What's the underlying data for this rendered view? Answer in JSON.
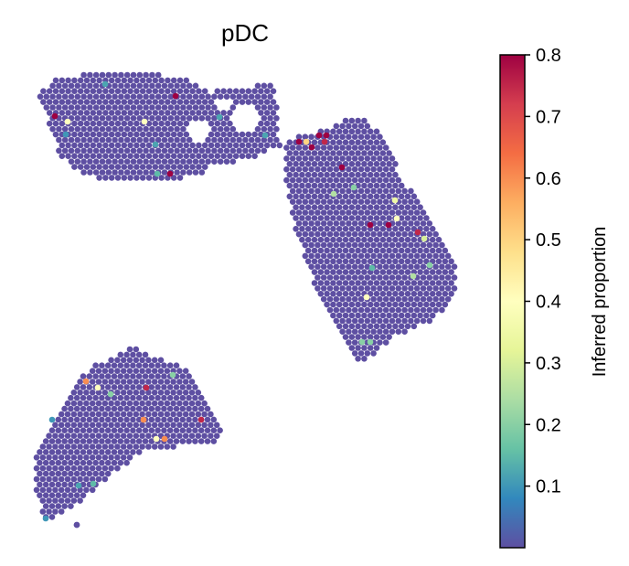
{
  "chart_data": {
    "type": "scatter",
    "title": "pDC",
    "xlabel": "",
    "ylabel": "",
    "axes_visible": false,
    "grid": false,
    "colormap": "Spectral_r",
    "background_color": "#5e4fa2",
    "colorbar": {
      "label": "Inferred proportion",
      "range": [
        0.0,
        0.8
      ],
      "ticks": [
        0.1,
        0.2,
        0.3,
        0.4,
        0.5,
        0.6,
        0.7,
        0.8
      ],
      "tick_labels": [
        "0.1",
        "0.2",
        "0.3",
        "0.4",
        "0.5",
        "0.6",
        "0.7",
        "0.8"
      ],
      "placement": "right"
    },
    "sections": [
      {
        "name": "top-left",
        "rows": [
          [
            84,
            152,
            0
          ],
          [
            50,
            290,
            1
          ],
          [
            44,
            300,
            2
          ],
          [
            44,
            306,
            3
          ],
          [
            50,
            300,
            4
          ],
          [
            57,
            300,
            5
          ],
          [
            63,
            300,
            6
          ],
          [
            63,
            240,
            7
          ],
          [
            63,
            230,
            8
          ],
          [
            70,
            235,
            9
          ],
          [
            70,
            230,
            10
          ],
          [
            77,
            225,
            11
          ],
          [
            84,
            225,
            12
          ],
          [
            91,
            220,
            13
          ],
          [
            98,
            220,
            14
          ],
          [
            112,
            200,
            15
          ],
          [
            118,
            190,
            16
          ]
        ],
        "holes": [
          [
            248,
            124,
            18
          ],
          [
            214,
            142,
            12
          ]
        ],
        "highlights": [
          [
            192,
            105,
            0.8
          ],
          [
            60,
            127,
            0.8
          ],
          [
            74,
            133,
            0.4
          ],
          [
            158,
            133,
            0.4
          ],
          [
            186,
            190,
            0.8
          ],
          [
            172,
            190,
            0.15
          ],
          [
            115,
            92,
            0.12
          ],
          [
            72,
            147,
            0.1
          ],
          [
            290,
            148,
            0.12
          ],
          [
            240,
            128,
            0.12
          ],
          [
            170,
            158,
            0.12
          ]
        ]
      },
      {
        "name": "right",
        "rows": [
          [
            129,
            372,
            0
          ],
          [
            136,
            358,
            1
          ],
          [
            143,
            343,
            2
          ],
          [
            150,
            330,
            3
          ],
          [
            157,
            316,
            4
          ],
          [
            164,
            308,
            5
          ],
          [
            171,
            308,
            6
          ],
          [
            178,
            310,
            7
          ],
          [
            185,
            312,
            8
          ],
          [
            192,
            314,
            9
          ],
          [
            199,
            316,
            10
          ],
          [
            206,
            318,
            11
          ],
          [
            213,
            320,
            12
          ],
          [
            220,
            322,
            13
          ],
          [
            227,
            322,
            14
          ],
          [
            234,
            322,
            15
          ],
          [
            241,
            322,
            16
          ],
          [
            248,
            322,
            17
          ],
          [
            255,
            324,
            18
          ],
          [
            262,
            326,
            19
          ],
          [
            269,
            328,
            20
          ],
          [
            276,
            330,
            21
          ],
          [
            283,
            332,
            22
          ],
          [
            290,
            334,
            23
          ],
          [
            297,
            338,
            24
          ],
          [
            304,
            342,
            25
          ],
          [
            311,
            346,
            26
          ],
          [
            318,
            350,
            27
          ],
          [
            325,
            354,
            28
          ],
          [
            332,
            358,
            29
          ],
          [
            339,
            364,
            30
          ],
          [
            346,
            370,
            31
          ],
          [
            353,
            376,
            32
          ],
          [
            360,
            382,
            33
          ],
          [
            367,
            386,
            34
          ],
          [
            374,
            390,
            35
          ],
          [
            381,
            394,
            36
          ],
          [
            388,
            398,
            37
          ],
          [
            395,
            400,
            38
          ]
        ],
        "clip": {
          "top": 129,
          "bottom": 396,
          "right_line": [
            [
              396,
              129
            ],
            [
              440,
              198
            ],
            [
              500,
              290
            ],
            [
              470,
              350
            ],
            [
              404,
              385
            ]
          ]
        },
        "highlights": [
          [
            327,
            155,
            0.8
          ],
          [
            341,
            161,
            0.8
          ],
          [
            349,
            148,
            0.8
          ],
          [
            357,
            148,
            0.8
          ],
          [
            355,
            155,
            0.75
          ],
          [
            335,
            155,
            0.5
          ],
          [
            374,
            183,
            0.8
          ],
          [
            405,
            246,
            0.8
          ],
          [
            425,
            246,
            0.8
          ],
          [
            434,
            239,
            0.4
          ],
          [
            457,
            254,
            0.75
          ],
          [
            464,
            261,
            0.3
          ],
          [
            470,
            290,
            0.2
          ],
          [
            452,
            302,
            0.25
          ],
          [
            387,
            205,
            0.2
          ],
          [
            365,
            212,
            0.25
          ],
          [
            401,
            325,
            0.4
          ],
          [
            396,
            374,
            0.2
          ],
          [
            405,
            374,
            0.2
          ],
          [
            432,
            219,
            0.35
          ],
          [
            407,
            293,
            0.15
          ]
        ]
      },
      {
        "name": "bottom-left",
        "rows": [
          [
            382,
            143,
            0
          ],
          [
            389,
            130,
            1
          ],
          [
            396,
            115,
            2
          ],
          [
            403,
            105,
            3
          ],
          [
            410,
            95,
            4
          ],
          [
            417,
            88,
            5
          ],
          [
            424,
            82,
            6
          ],
          [
            431,
            75,
            7
          ],
          [
            438,
            70,
            8
          ],
          [
            445,
            64,
            9
          ],
          [
            452,
            60,
            10
          ],
          [
            459,
            57,
            11
          ],
          [
            466,
            54,
            12
          ],
          [
            473,
            50,
            13
          ],
          [
            480,
            46,
            14
          ],
          [
            487,
            42,
            15
          ],
          [
            494,
            40,
            16
          ],
          [
            501,
            40,
            17
          ],
          [
            508,
            40,
            18
          ],
          [
            515,
            40,
            19
          ],
          [
            522,
            40,
            20
          ],
          [
            529,
            42,
            21
          ],
          [
            536,
            45,
            22
          ],
          [
            543,
            48,
            23
          ],
          [
            550,
            50,
            24
          ],
          [
            557,
            52,
            25
          ],
          [
            564,
            50,
            26
          ]
        ],
        "clip": {
          "right_line": [
            [
              143,
              382
            ],
            [
              200,
              400
            ],
            [
              235,
              465
            ],
            [
              245,
              478
            ],
            [
              185,
              488
            ],
            [
              120,
              520
            ],
            [
              70,
              560
            ],
            [
              50,
              570
            ]
          ]
        },
        "highlights": [
          [
            94,
            417,
            0.6
          ],
          [
            107,
            424,
            0.4
          ],
          [
            121,
            431,
            0.2
          ],
          [
            160,
            424,
            0.75
          ],
          [
            189,
            410,
            0.2
          ],
          [
            157,
            459,
            0.6
          ],
          [
            171,
            480,
            0.4
          ],
          [
            180,
            480,
            0.6
          ],
          [
            220,
            459,
            0.75
          ],
          [
            102,
            529,
            0.15
          ],
          [
            84,
            574,
            0.0
          ],
          [
            50,
            567,
            0.1
          ],
          [
            57,
            459,
            0.1
          ],
          [
            86,
            531,
            0.12
          ]
        ]
      }
    ]
  }
}
